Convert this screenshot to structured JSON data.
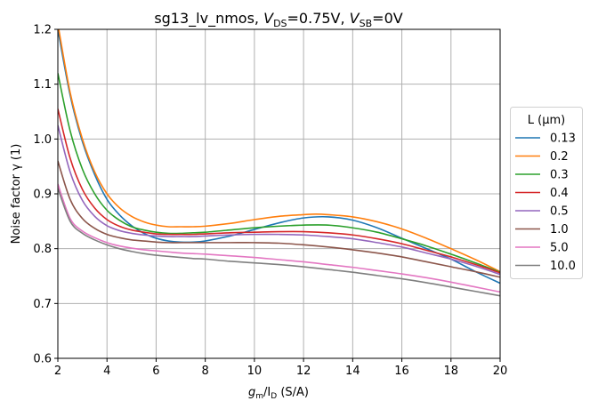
{
  "chart_data": {
    "type": "line",
    "title_parts": {
      "prefix": "sg13_lv_nmos, ",
      "vds_var": "V",
      "vds_sub": "DS",
      "vds_val": "=0.75V, ",
      "vsb_var": "V",
      "vsb_sub": "SB",
      "vsb_val": "=0V"
    },
    "xlabel_parts": {
      "g": "g",
      "g_sub": "m",
      "slash": "/I",
      "i_sub": "D",
      "unit": " (S/A)"
    },
    "ylabel": "Noise factor γ (1)",
    "xlim": [
      2,
      20
    ],
    "ylim": [
      0.6,
      1.2
    ],
    "xticks": [
      2,
      4,
      6,
      8,
      10,
      12,
      14,
      16,
      18,
      20
    ],
    "yticks": [
      0.6,
      0.7,
      0.8,
      0.9,
      1.0,
      1.1,
      1.2
    ],
    "ytick_labels": [
      "0.6",
      "0.7",
      "0.8",
      "0.9",
      "1.0",
      "1.1",
      "1.2"
    ],
    "grid": true,
    "legend": {
      "title": "L (µm)",
      "placement": "outside-right"
    },
    "series": [
      {
        "name": "0.13",
        "color": "#1f77b4",
        "x": [
          2,
          2.5,
          3,
          3.5,
          4,
          4.5,
          5,
          5.5,
          6,
          6.5,
          7,
          7.5,
          8,
          9,
          10,
          11,
          12,
          13,
          14,
          15,
          16,
          17,
          18,
          19,
          20
        ],
        "y": [
          1.2,
          1.08,
          0.995,
          0.935,
          0.89,
          0.862,
          0.842,
          0.828,
          0.819,
          0.814,
          0.812,
          0.812,
          0.814,
          0.823,
          0.835,
          0.847,
          0.856,
          0.858,
          0.852,
          0.838,
          0.819,
          0.8,
          0.781,
          0.758,
          0.737
        ]
      },
      {
        "name": "0.2",
        "color": "#ff7f0e",
        "x": [
          2,
          2.5,
          3,
          3.5,
          4,
          4.5,
          5,
          5.5,
          6,
          6.5,
          7,
          7.5,
          8,
          9,
          10,
          11,
          12,
          12.5,
          13,
          14,
          15,
          16,
          17,
          18,
          19,
          20
        ],
        "y": [
          1.21,
          1.085,
          1.0,
          0.94,
          0.9,
          0.875,
          0.859,
          0.849,
          0.843,
          0.84,
          0.84,
          0.84,
          0.841,
          0.846,
          0.853,
          0.859,
          0.862,
          0.863,
          0.862,
          0.858,
          0.849,
          0.836,
          0.819,
          0.8,
          0.78,
          0.758
        ]
      },
      {
        "name": "0.3",
        "color": "#2ca02c",
        "x": [
          2,
          2.5,
          3,
          3.5,
          4,
          4.5,
          5,
          5.5,
          6,
          6.5,
          7,
          7.5,
          8,
          9,
          10,
          11,
          12,
          13,
          14,
          15,
          16,
          17,
          18,
          19,
          20
        ],
        "y": [
          1.12,
          1.015,
          0.945,
          0.9,
          0.87,
          0.852,
          0.84,
          0.834,
          0.83,
          0.828,
          0.828,
          0.829,
          0.83,
          0.834,
          0.838,
          0.841,
          0.843,
          0.843,
          0.838,
          0.83,
          0.818,
          0.805,
          0.79,
          0.774,
          0.757
        ]
      },
      {
        "name": "0.4",
        "color": "#d62728",
        "x": [
          2,
          2.5,
          3,
          3.5,
          4,
          4.5,
          5,
          5.5,
          6,
          6.5,
          7,
          7.5,
          8,
          9,
          10,
          11,
          12,
          13,
          14,
          15,
          16,
          17,
          18,
          19,
          20
        ],
        "y": [
          1.055,
          0.965,
          0.908,
          0.874,
          0.853,
          0.841,
          0.834,
          0.83,
          0.827,
          0.826,
          0.826,
          0.826,
          0.827,
          0.829,
          0.83,
          0.831,
          0.831,
          0.829,
          0.825,
          0.818,
          0.809,
          0.797,
          0.785,
          0.771,
          0.756
        ]
      },
      {
        "name": "0.5",
        "color": "#9467bd",
        "x": [
          2,
          2.5,
          3,
          3.5,
          4,
          4.5,
          5,
          5.5,
          6,
          6.5,
          7,
          7.5,
          8,
          9,
          10,
          11,
          12,
          13,
          14,
          15,
          16,
          17,
          18,
          19,
          20
        ],
        "y": [
          1.025,
          0.94,
          0.888,
          0.859,
          0.842,
          0.833,
          0.828,
          0.825,
          0.823,
          0.822,
          0.822,
          0.822,
          0.823,
          0.825,
          0.826,
          0.826,
          0.825,
          0.822,
          0.818,
          0.811,
          0.803,
          0.792,
          0.781,
          0.768,
          0.753
        ]
      },
      {
        "name": "1.0",
        "color": "#8c564b",
        "x": [
          2,
          2.5,
          3,
          3.5,
          4,
          4.5,
          5,
          5.5,
          6,
          6.5,
          7,
          7.5,
          8,
          9,
          10,
          11,
          12,
          13,
          14,
          15,
          16,
          17,
          18,
          19,
          20
        ],
        "y": [
          0.96,
          0.89,
          0.855,
          0.837,
          0.826,
          0.82,
          0.816,
          0.814,
          0.812,
          0.811,
          0.811,
          0.811,
          0.811,
          0.811,
          0.811,
          0.81,
          0.807,
          0.803,
          0.798,
          0.792,
          0.785,
          0.776,
          0.767,
          0.758,
          0.748
        ]
      },
      {
        "name": "5.0",
        "color": "#e377c2",
        "x": [
          2,
          2.5,
          3,
          3.5,
          4,
          4.5,
          5,
          5.5,
          6,
          6.5,
          7,
          7.5,
          8,
          9,
          10,
          11,
          12,
          13,
          14,
          15,
          16,
          17,
          18,
          19,
          20
        ],
        "y": [
          0.918,
          0.855,
          0.832,
          0.82,
          0.811,
          0.805,
          0.801,
          0.798,
          0.796,
          0.794,
          0.792,
          0.791,
          0.79,
          0.787,
          0.784,
          0.78,
          0.776,
          0.771,
          0.766,
          0.76,
          0.754,
          0.747,
          0.739,
          0.73,
          0.721
        ]
      },
      {
        "name": "10.0",
        "color": "#7f7f7f",
        "x": [
          2,
          2.5,
          3,
          3.5,
          4,
          4.5,
          5,
          5.5,
          6,
          6.5,
          7,
          7.5,
          8,
          9,
          10,
          11,
          12,
          13,
          14,
          15,
          16,
          17,
          18,
          19,
          20
        ],
        "y": [
          0.91,
          0.85,
          0.828,
          0.816,
          0.807,
          0.8,
          0.795,
          0.791,
          0.788,
          0.786,
          0.784,
          0.782,
          0.781,
          0.777,
          0.774,
          0.771,
          0.767,
          0.762,
          0.757,
          0.751,
          0.745,
          0.738,
          0.73,
          0.722,
          0.714
        ]
      }
    ]
  }
}
